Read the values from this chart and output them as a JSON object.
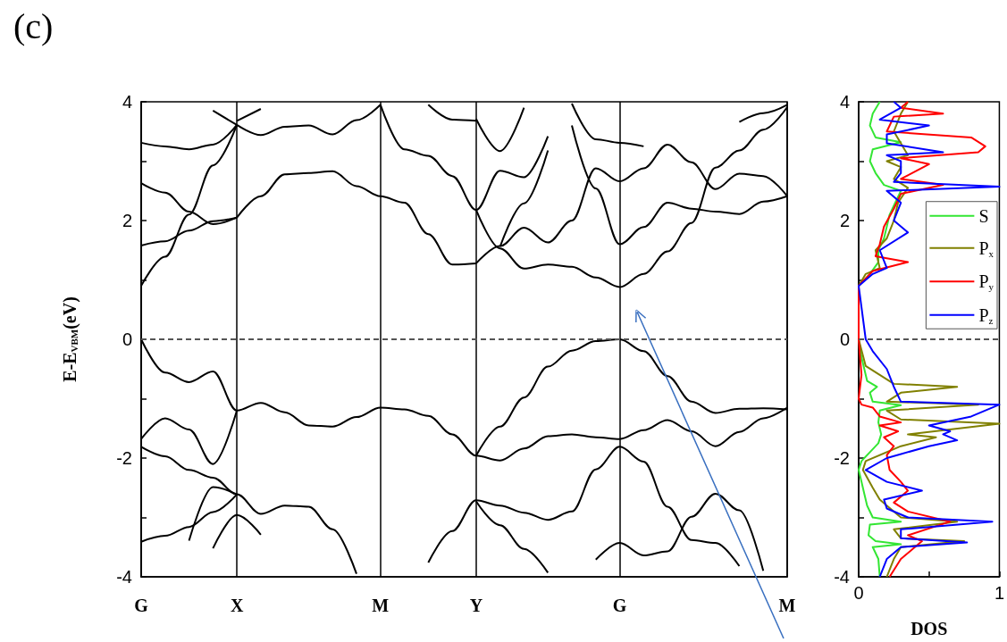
{
  "chart_data": [
    {
      "type": "line",
      "title": "(c)",
      "ylabel": "E-E$_{VBM}$(eV)",
      "categories": [
        "G",
        null,
        null,
        null,
        "X",
        null,
        null,
        null,
        null,
        null,
        "M",
        null,
        null,
        null,
        "Y",
        null,
        null,
        null,
        null,
        null,
        "G",
        null,
        null,
        null,
        null,
        null,
        null,
        "M"
      ],
      "ylim": [
        -4,
        4
      ],
      "yticks": [
        -4,
        {
          "value": -3,
          "label": null
        },
        -2,
        {
          "value": -1,
          "label": null
        },
        0,
        {
          "value": 1,
          "label": null
        },
        2,
        {
          "value": 3,
          "label": null
        },
        4
      ],
      "marker": "none",
      "grid": "x",
      "series": [
        {
          "color": "#000000",
          "values": [
            3.31,
            3.25,
            3.2,
            3.28,
            3.61,
            null,
            null,
            null,
            null,
            null,
            null,
            null,
            null,
            null,
            null,
            null,
            null,
            null,
            null,
            null,
            null,
            null,
            null,
            null,
            null,
            null,
            null,
            null
          ]
        },
        {
          "color": "#000000",
          "values": [
            2.63,
            2.47,
            2.15,
            1.94,
            2.05,
            null,
            null,
            null,
            null,
            null,
            null,
            null,
            null,
            null,
            null,
            null,
            null,
            null,
            null,
            null,
            null,
            null,
            null,
            null,
            null,
            null,
            null,
            null
          ]
        },
        {
          "color": "#000000",
          "values": [
            1.58,
            1.65,
            1.83,
            1.99,
            2.05,
            null,
            null,
            null,
            null,
            null,
            null,
            null,
            null,
            null,
            null,
            null,
            null,
            null,
            null,
            null,
            null,
            null,
            null,
            null,
            null,
            null,
            null,
            null
          ]
        },
        {
          "color": "#000000",
          "values": [
            0.9,
            1.39,
            2.1,
            2.93,
            3.61,
            null,
            null,
            null,
            null,
            null,
            null,
            null,
            null,
            null,
            null,
            null,
            null,
            null,
            null,
            null,
            null,
            null,
            null,
            null,
            null,
            null,
            null,
            null
          ]
        },
        {
          "color": "#000000",
          "values": [
            null,
            null,
            null,
            3.85,
            3.61,
            null,
            null,
            null,
            null,
            null,
            null,
            null,
            null,
            null,
            null,
            null,
            null,
            null,
            null,
            null,
            null,
            null,
            null,
            null,
            null,
            null,
            null,
            null
          ]
        },
        {
          "color": "#000000",
          "values": [
            null,
            null,
            null,
            null,
            3.68,
            3.88,
            null,
            null,
            null,
            null,
            null,
            null,
            null,
            null,
            null,
            null,
            null,
            null,
            null,
            null,
            null,
            null,
            null,
            null,
            null,
            null,
            null,
            null
          ]
        },
        {
          "color": "#000000",
          "values": [
            null,
            null,
            null,
            null,
            3.61,
            3.44,
            3.58,
            3.6,
            3.45,
            3.69,
            3.95,
            null,
            null,
            null,
            null,
            null,
            null,
            null,
            null,
            null,
            null,
            null,
            null,
            null,
            null,
            null,
            null,
            null
          ]
        },
        {
          "color": "#000000",
          "values": [
            null,
            null,
            null,
            null,
            2.05,
            2.41,
            2.78,
            2.8,
            2.83,
            2.58,
            2.41,
            2.3,
            1.77,
            1.26,
            1.28,
            null,
            null,
            null,
            null,
            null,
            null,
            null,
            null,
            null,
            null,
            null,
            null,
            null
          ]
        },
        {
          "color": "#000000",
          "values": [
            null,
            null,
            null,
            null,
            null,
            null,
            null,
            null,
            null,
            null,
            3.95,
            3.2,
            3.09,
            2.75,
            2.18,
            2.84,
            2.73,
            3.42,
            null,
            null,
            null,
            null,
            null,
            null,
            null,
            null,
            null,
            null
          ]
        },
        {
          "color": "#000000",
          "values": [
            null,
            null,
            null,
            null,
            null,
            null,
            null,
            null,
            null,
            null,
            null,
            null,
            null,
            null,
            1.28,
            1.57,
            1.88,
            1.63,
            2.0,
            2.88,
            2.66,
            2.88,
            3.28,
            2.98,
            2.53,
            2.79,
            2.75,
            2.41
          ]
        },
        {
          "color": "#000000",
          "values": [
            null,
            null,
            null,
            null,
            null,
            null,
            null,
            null,
            null,
            null,
            null,
            null,
            null,
            null,
            2.18,
            1.53,
            1.19,
            1.26,
            1.22,
            1.04,
            0.88,
            1.1,
            1.48,
            1.96,
            2.89,
            3.18,
            3.53,
            3.91
          ]
        },
        {
          "color": "#000000",
          "values": [
            null,
            null,
            null,
            null,
            null,
            null,
            null,
            null,
            null,
            null,
            null,
            null,
            null,
            null,
            null,
            null,
            null,
            null,
            3.6,
            2.54,
            1.6,
            1.89,
            2.3,
            2.2,
            2.15,
            2.11,
            2.32,
            2.41
          ]
        },
        {
          "color": "#000000",
          "values": [
            null,
            null,
            null,
            null,
            null,
            null,
            null,
            null,
            null,
            null,
            null,
            null,
            null,
            null,
            null,
            null,
            null,
            null,
            3.97,
            3.37,
            3.31,
            3.25,
            null,
            null,
            null,
            null,
            null,
            null
          ]
        },
        {
          "color": "#000000",
          "values": [
            null,
            null,
            null,
            null,
            null,
            null,
            null,
            null,
            null,
            null,
            null,
            null,
            null,
            null,
            null,
            null,
            null,
            null,
            null,
            null,
            null,
            null,
            null,
            null,
            null,
            3.66,
            3.81,
            3.95
          ]
        },
        {
          "color": "#000000",
          "values": [
            null,
            null,
            null,
            null,
            null,
            null,
            null,
            null,
            null,
            null,
            null,
            null,
            null,
            null,
            3.71,
            3.17,
            3.9,
            null,
            null,
            null,
            null,
            null,
            null,
            null,
            null,
            null,
            null,
            null
          ]
        },
        {
          "color": "#000000",
          "values": [
            null,
            null,
            null,
            null,
            null,
            null,
            null,
            null,
            null,
            null,
            null,
            null,
            3.95,
            3.7,
            3.68,
            null,
            null,
            null,
            null,
            null,
            null,
            null,
            null,
            null,
            null,
            null,
            null,
            null
          ]
        },
        {
          "color": "#000000",
          "values": [
            null,
            null,
            null,
            null,
            null,
            null,
            null,
            null,
            null,
            null,
            null,
            null,
            null,
            null,
            null,
            1.56,
            2.29,
            3.18,
            null,
            null,
            null,
            null,
            null,
            null,
            null,
            null,
            null,
            null
          ]
        },
        {
          "color": "#000000",
          "values": [
            0,
            -0.56,
            -0.72,
            -0.54,
            -1.2,
            -1.07,
            -1.23,
            -1.45,
            -1.47,
            -1.31,
            -1.15,
            -1.18,
            -1.29,
            -1.6,
            -1.96,
            -2.04,
            -1.84,
            -1.63,
            -1.6,
            -1.65,
            -1.68,
            -1.53,
            -1.36,
            -1.55,
            -1.8,
            -1.56,
            -1.33,
            -1.15
          ]
        },
        {
          "color": "#000000",
          "values": [
            -1.68,
            -1.33,
            -1.52,
            -2.1,
            -1.2,
            null,
            null,
            null,
            null,
            null,
            null,
            null,
            null,
            null,
            null,
            null,
            null,
            null,
            null,
            null,
            null,
            null,
            null,
            null,
            null,
            null,
            null,
            null
          ]
        },
        {
          "color": "#000000",
          "values": [
            null,
            null,
            null,
            null,
            null,
            null,
            null,
            null,
            null,
            null,
            null,
            null,
            null,
            null,
            -1.96,
            -1.47,
            -0.98,
            -0.46,
            -0.19,
            -0.03,
            0,
            -0.2,
            -0.62,
            -1.05,
            -1.24,
            -1.17,
            -1.16,
            -1.18
          ]
        },
        {
          "color": "#000000",
          "values": [
            -1.81,
            -1.97,
            -2.2,
            -2.33,
            -2.61,
            -2.94,
            -2.8,
            -2.82,
            -3.2,
            -3.95,
            null,
            null,
            null,
            null,
            null,
            null,
            null,
            null,
            null,
            null,
            null,
            null,
            null,
            null,
            null,
            null,
            null,
            null
          ]
        },
        {
          "color": "#000000",
          "values": [
            -3.41,
            -3.31,
            -3.16,
            -2.91,
            -2.61,
            null,
            null,
            null,
            null,
            null,
            null,
            null,
            null,
            null,
            null,
            null,
            null,
            null,
            null,
            null,
            null,
            null,
            null,
            null,
            null,
            null,
            null,
            null
          ]
        },
        {
          "color": "#000000",
          "values": [
            null,
            null,
            -3.39,
            -2.49,
            -2.61,
            null,
            null,
            null,
            null,
            null,
            null,
            null,
            null,
            null,
            null,
            null,
            null,
            null,
            null,
            null,
            null,
            null,
            null,
            null,
            null,
            null,
            null,
            null
          ]
        },
        {
          "color": "#000000",
          "values": [
            null,
            null,
            null,
            -3.52,
            -2.96,
            -3.29,
            null,
            null,
            null,
            null,
            null,
            null,
            null,
            null,
            null,
            null,
            null,
            null,
            null,
            null,
            null,
            null,
            null,
            null,
            null,
            null,
            null,
            null
          ]
        },
        {
          "color": "#000000",
          "values": [
            null,
            null,
            null,
            null,
            null,
            null,
            null,
            null,
            null,
            null,
            null,
            null,
            -3.76,
            -3.23,
            -2.71,
            -2.8,
            -2.92,
            -3.04,
            -2.9,
            -2.19,
            -1.81,
            -2.06,
            -2.82,
            -3.38,
            -3.43,
            -3.82,
            null,
            null
          ]
        },
        {
          "color": "#000000",
          "values": [
            null,
            null,
            null,
            null,
            null,
            null,
            null,
            null,
            null,
            null,
            null,
            null,
            null,
            null,
            -2.73,
            -3.13,
            -3.53,
            -3.93,
            null,
            null,
            null,
            null,
            null,
            null,
            null,
            null,
            null,
            null
          ]
        },
        {
          "color": "#000000",
          "values": [
            null,
            null,
            null,
            null,
            null,
            null,
            null,
            null,
            null,
            null,
            null,
            null,
            null,
            null,
            null,
            null,
            null,
            null,
            null,
            -3.71,
            -3.43,
            -3.64,
            -3.57,
            -2.99,
            -2.6,
            -2.88,
            -3.9,
            null
          ]
        }
      ],
      "ref_lines": [
        {
          "axis": "y",
          "value": 0,
          "color": "#555555",
          "line_style": "dashed"
        }
      ]
    },
    {
      "type": "line",
      "xlabel": "DOS",
      "xlim": [
        0,
        1
      ],
      "xticks": [
        0,
        {
          "value": 0.5,
          "label": null
        },
        1
      ],
      "ylim": [
        -4,
        4
      ],
      "yticks": [
        -4,
        {
          "value": -3,
          "label": null
        },
        -2,
        {
          "value": -1,
          "label": null
        },
        0,
        {
          "value": 1,
          "label": null
        },
        2,
        {
          "value": 3,
          "label": null
        },
        4
      ],
      "marker": "none",
      "legend": "right",
      "series": [
        {
          "name": "S",
          "color": "#33e633",
          "x": [
            0.15,
            0.14,
            0.1,
            0.3,
            0.12,
            0.07,
            0.08,
            0.3,
            0.1,
            0.06,
            0.04,
            0.02,
            0.0,
            0.02,
            0.08,
            0.14,
            0.16,
            0.14,
            0.15,
            0.3,
            0.1,
            0.08,
            0.13,
            0.06,
            0.04,
            0.02,
            0.0,
            0.0,
            0.08,
            0.14,
            0.14,
            0.18,
            0.2,
            0.22,
            0.26,
            0.3,
            0.18,
            0.12,
            0.08,
            0.1,
            0.3,
            0.12,
            0.08,
            0.1,
            0.15
          ],
          "values": [
            -4,
            -3.7,
            -3.5,
            -3.45,
            -3.4,
            -3.3,
            -3.12,
            -3.07,
            -3.0,
            -2.8,
            -2.6,
            -2.4,
            -2.2,
            -2.05,
            -1.9,
            -1.75,
            -1.6,
            -1.4,
            -1.2,
            -1.11,
            -1.05,
            -0.9,
            -0.8,
            -0.7,
            -0.5,
            -0.3,
            0,
            0.9,
            1.1,
            1.3,
            1.5,
            1.7,
            1.9,
            2.1,
            2.3,
            2.5,
            2.6,
            2.8,
            3.0,
            3.2,
            3.32,
            3.4,
            3.6,
            3.8,
            4
          ]
        },
        {
          "name": "P$_{x}$",
          "color": "#808000",
          "x": [
            0.2,
            0.25,
            0.3,
            0.75,
            0.3,
            0.25,
            0.7,
            0.3,
            0.2,
            0.15,
            0.1,
            0.03,
            0.05,
            0.3,
            0.55,
            0.35,
            1.0,
            0.3,
            0.2,
            0.85,
            0.2,
            0.3,
            0.7,
            0.25,
            0.05,
            0.0,
            0.0,
            0.05,
            0.15,
            0.12,
            0.2,
            0.25,
            0.28,
            0.35,
            0.25,
            0.3,
            0.2,
            0.35,
            0.3,
            0.25,
            0.3,
            0.35
          ],
          "values": [
            -4,
            -3.7,
            -3.5,
            -3.4,
            -3.35,
            -3.2,
            -3.07,
            -3.0,
            -2.8,
            -2.7,
            -2.5,
            -2.2,
            -2.05,
            -1.8,
            -1.65,
            -1.6,
            -1.42,
            -1.35,
            -1.2,
            -1.1,
            -1.05,
            -0.9,
            -0.8,
            -0.75,
            -0.45,
            0,
            0.9,
            1.1,
            1.2,
            1.5,
            1.7,
            2.0,
            2.3,
            2.55,
            2.7,
            2.9,
            3.0,
            3.1,
            3.3,
            3.5,
            3.8,
            4
          ]
        },
        {
          "name": "P$_{y}$",
          "color": "#ff0000",
          "x": [
            0.22,
            0.3,
            0.45,
            0.35,
            0.65,
            0.35,
            0.25,
            0.35,
            0.3,
            0.22,
            0.2,
            0.25,
            0.18,
            0.28,
            0.15,
            0.3,
            0.15,
            0.1,
            0.02,
            0.0,
            0.02,
            0.0,
            0.0,
            0.1,
            0.35,
            0.12,
            0.15,
            0.18,
            0.25,
            0.3,
            0.6,
            0.3,
            0.5,
            0.3,
            0.85,
            0.9,
            0.8,
            0.2,
            0.25,
            0.6,
            0.3,
            0.35
          ],
          "values": [
            -4,
            -3.7,
            -3.4,
            -3.3,
            -3.07,
            -2.9,
            -2.75,
            -2.55,
            -2.4,
            -2.2,
            -1.95,
            -1.8,
            -1.65,
            -1.55,
            -1.45,
            -1.4,
            -1.3,
            -1.15,
            -1.1,
            -1.0,
            -0.6,
            0,
            0.9,
            1.15,
            1.3,
            1.4,
            1.6,
            1.9,
            2.2,
            2.45,
            2.6,
            2.7,
            2.95,
            3.05,
            3.15,
            3.25,
            3.4,
            3.5,
            3.75,
            3.8,
            3.9,
            4
          ]
        },
        {
          "name": "P$_{z}$",
          "color": "#0000ff",
          "x": [
            0.15,
            0.2,
            0.3,
            0.77,
            0.3,
            0.3,
            0.95,
            0.35,
            0.2,
            0.18,
            0.45,
            0.2,
            0.05,
            0.2,
            0.5,
            0.7,
            0.6,
            0.65,
            0.5,
            0.8,
            1.0,
            0.3,
            0.25,
            0.2,
            0.1,
            0.05,
            0.0,
            0.1,
            0.2,
            0.15,
            0.35,
            0.25,
            0.3,
            0.2,
            1.0,
            0.25,
            0.3,
            0.3,
            0.2,
            0.6,
            0.2,
            0.2,
            0.5,
            0.15,
            0.3,
            0.25
          ],
          "values": [
            -4,
            -3.7,
            -3.5,
            -3.42,
            -3.35,
            -3.2,
            -3.07,
            -3.0,
            -2.85,
            -2.7,
            -2.55,
            -2.4,
            -2.2,
            -2.0,
            -1.8,
            -1.7,
            -1.6,
            -1.55,
            -1.45,
            -1.3,
            -1.1,
            -1.05,
            -0.8,
            -0.5,
            -0.2,
            0,
            0.9,
            1.1,
            1.2,
            1.5,
            1.8,
            2.0,
            2.3,
            2.5,
            2.57,
            2.65,
            2.8,
            3.0,
            3.1,
            3.15,
            3.3,
            3.45,
            3.6,
            3.7,
            3.9,
            4
          ]
        }
      ],
      "ref_lines": [
        {
          "axis": "y",
          "value": 0,
          "color": "#555555",
          "line_style": "dashed"
        }
      ]
    }
  ]
}
